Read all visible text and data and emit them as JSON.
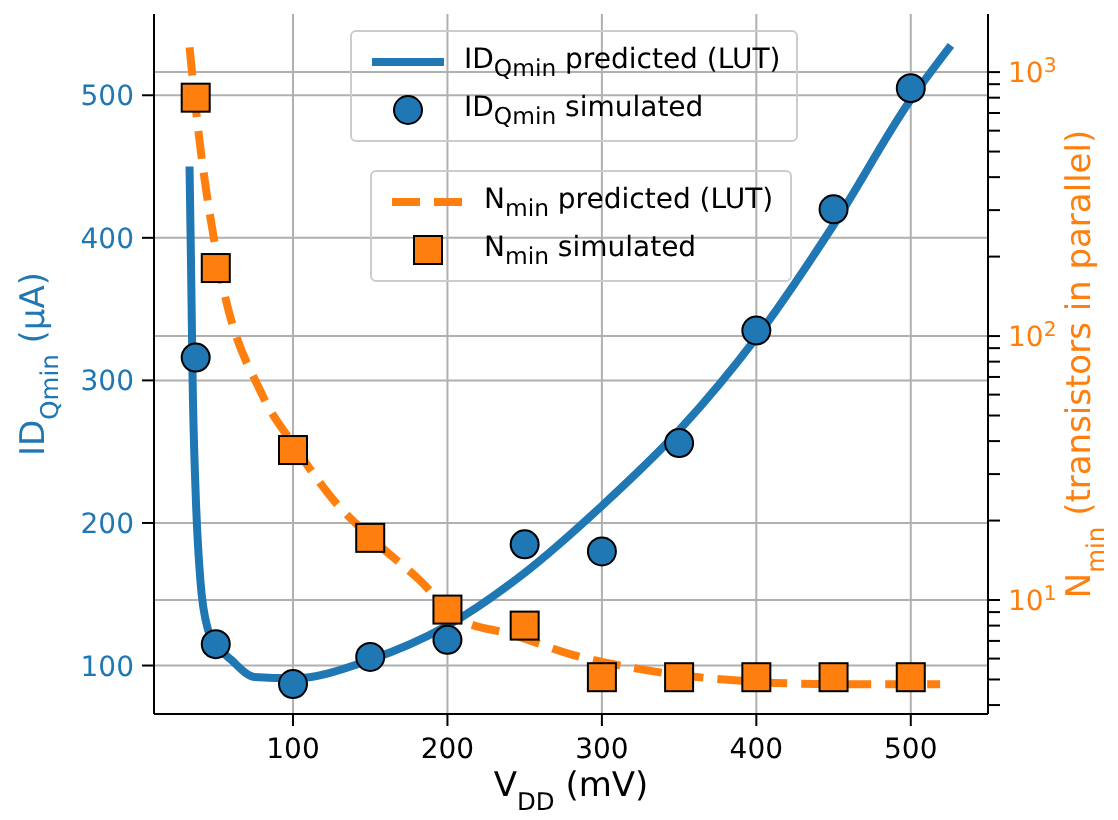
{
  "chart_data": {
    "type": "line",
    "xlabel": "V$_{DD}$ (mV)",
    "ylabel": "ID$_{Qmin}$ (μA)",
    "y2label": "N$_{min}$ (transistors in parallel)",
    "xlim": [
      10,
      550
    ],
    "xticks": [
      100,
      200,
      300,
      400,
      500
    ],
    "ylim": [
      66,
      557
    ],
    "yticks": [
      100,
      200,
      300,
      400,
      500
    ],
    "y2lim": [
      3.7,
      1660
    ],
    "y2ticks": [
      {
        "value": 4,
        "label": null
      },
      {
        "value": 5,
        "label": null
      },
      {
        "value": 6,
        "label": null
      },
      {
        "value": 7,
        "label": null
      },
      {
        "value": 8,
        "label": null
      },
      {
        "value": 9,
        "label": null
      },
      {
        "value": 10,
        "label": "10$^{1}$"
      },
      {
        "value": 20,
        "label": null
      },
      {
        "value": 30,
        "label": null
      },
      {
        "value": 40,
        "label": null
      },
      {
        "value": 50,
        "label": null
      },
      {
        "value": 60,
        "label": null
      },
      {
        "value": 70,
        "label": null
      },
      {
        "value": 80,
        "label": null
      },
      {
        "value": 90,
        "label": null
      },
      {
        "value": 100,
        "label": "10$^{2}$"
      },
      {
        "value": 200,
        "label": null
      },
      {
        "value": 300,
        "label": null
      },
      {
        "value": 400,
        "label": null
      },
      {
        "value": 500,
        "label": null
      },
      {
        "value": 600,
        "label": null
      },
      {
        "value": 700,
        "label": null
      },
      {
        "value": 800,
        "label": null
      },
      {
        "value": 900,
        "label": null
      },
      {
        "value": 1000,
        "label": "10$^{3}$"
      }
    ],
    "log": "y2",
    "grid": true,
    "legend": "top",
    "series": [
      {
        "name": "ID$_{Qmin}$ predicted (LUT)",
        "color": "#1f77b4",
        "axis": "y",
        "line_style": "solid",
        "marker": "none",
        "x": [
          33,
          34,
          35,
          37,
          40,
          45,
          50,
          60,
          75,
          100,
          150,
          200,
          250,
          300,
          350,
          400,
          450,
          500,
          526
        ],
        "values": [
          450,
          380,
          300,
          220,
          160,
          125,
          115,
          104,
          92,
          91,
          104,
          128,
          165,
          212,
          265,
          330,
          409,
          497,
          535
        ]
      },
      {
        "type": "scatter",
        "name": "ID$_{Qmin}$ simulated",
        "color": "#1f77b4",
        "axis": "y",
        "marker": "circle",
        "x": [
          37,
          50,
          100,
          150,
          200,
          250,
          300,
          350,
          400,
          450,
          500
        ],
        "values": [
          316,
          115,
          87,
          106,
          118,
          185,
          180,
          256,
          335,
          420,
          505
        ]
      },
      {
        "name": "N$_{min}$ predicted (LUT)",
        "color": "#ff7f0e",
        "axis": "y2",
        "line_style": "dashed",
        "marker": "none",
        "x": [
          33,
          39,
          52,
          80,
          100,
          126,
          152,
          182,
          207,
          242,
          281,
          315,
          400,
          450,
          519
        ],
        "values": [
          1240,
          580,
          184,
          60,
          39,
          24,
          16.9,
          11.9,
          8.5,
          7.4,
          6.2,
          5.6,
          4.9,
          4.8,
          4.8
        ]
      },
      {
        "type": "scatter",
        "name": "N$_{min}$ simulated",
        "color": "#ff7f0e",
        "axis": "y2",
        "marker": "square",
        "x": [
          37,
          50,
          100,
          150,
          200,
          250,
          300,
          350,
          400,
          450,
          500
        ],
        "values": [
          800,
          181,
          37,
          17.2,
          9.2,
          8.0,
          5.1,
          5.1,
          5.1,
          5.1,
          5.1
        ]
      }
    ]
  }
}
